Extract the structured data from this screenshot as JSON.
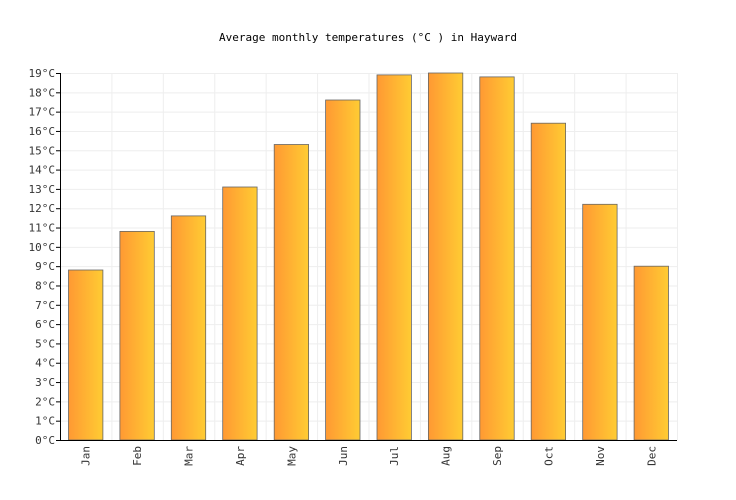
{
  "chart_data": {
    "type": "bar",
    "title": "Average monthly temperatures (°C ) in Hayward",
    "categories": [
      "Jan",
      "Feb",
      "Mar",
      "Apr",
      "May",
      "Jun",
      "Jul",
      "Aug",
      "Sep",
      "Oct",
      "Nov",
      "Dec"
    ],
    "values": [
      8.8,
      10.8,
      11.6,
      13.1,
      15.3,
      17.6,
      18.9,
      19.0,
      18.8,
      16.4,
      12.2,
      9.0
    ],
    "ylim": [
      0,
      19
    ],
    "y_ticks": [
      "0°C",
      "1°C",
      "2°C",
      "3°C",
      "4°C",
      "5°C",
      "6°C",
      "7°C",
      "8°C",
      "9°C",
      "10°C",
      "11°C",
      "12°C",
      "13°C",
      "14°C",
      "15°C",
      "16°C",
      "17°C",
      "18°C",
      "19°C"
    ],
    "grid": true,
    "legend": "none",
    "colors": {
      "bar_left": "#ff9933",
      "bar_right": "#ffcc33",
      "bar_stroke": "#666666",
      "grid": "#eeeeee",
      "axis": "#000000"
    }
  }
}
